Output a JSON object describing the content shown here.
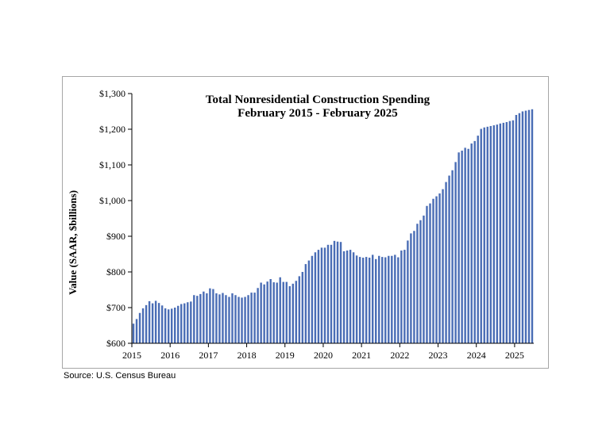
{
  "chart_data": {
    "type": "bar",
    "title": "Total Nonresidential Construction Spending",
    "subtitle": "February 2015 - February 2025",
    "xlabel": "",
    "ylabel": "Value (SAAR, $billions)",
    "ylim": [
      600,
      1300
    ],
    "yticks": [
      600,
      700,
      800,
      900,
      1000,
      1100,
      1200,
      1300
    ],
    "ytick_labels": [
      "$600",
      "$700",
      "$800",
      "$900",
      "$1,000",
      "$1,100",
      "$1,200",
      "$1,300"
    ],
    "xtick_labels": [
      "2015",
      "2016",
      "2017",
      "2018",
      "2019",
      "2020",
      "2021",
      "2022",
      "2023",
      "2024",
      "2025"
    ],
    "grid": false,
    "bar_color": "#4a6db5",
    "series": [
      {
        "values": [
          655,
          668,
          685,
          698,
          707,
          718,
          712,
          719,
          713,
          706,
          698,
          695,
          697,
          700,
          705,
          710,
          712,
          715,
          717,
          735,
          733,
          738,
          745,
          740,
          754,
          752,
          740,
          737,
          741,
          735,
          730,
          740,
          735,
          730,
          728,
          730,
          735,
          742,
          742,
          755,
          770,
          765,
          773,
          780,
          771,
          770,
          785,
          772,
          772,
          760,
          767,
          775,
          788,
          800,
          822,
          832,
          845,
          855,
          862,
          868,
          868,
          876,
          876,
          887,
          885,
          884,
          858,
          860,
          862,
          855,
          846,
          842,
          840,
          842,
          840,
          848,
          836,
          845,
          842,
          841,
          845,
          845,
          848,
          841,
          860,
          862,
          888,
          908,
          915,
          935,
          945,
          958,
          985,
          992,
          1005,
          1012,
          1020,
          1032,
          1052,
          1070,
          1085,
          1108,
          1135,
          1140,
          1148,
          1145,
          1160,
          1167,
          1182,
          1201,
          1205,
          1207,
          1209,
          1211,
          1213,
          1216,
          1218,
          1220,
          1223,
          1225,
          1240,
          1245,
          1250,
          1252,
          1254,
          1256
        ]
      }
    ]
  },
  "source": "Source:  U.S. Census Bureau"
}
